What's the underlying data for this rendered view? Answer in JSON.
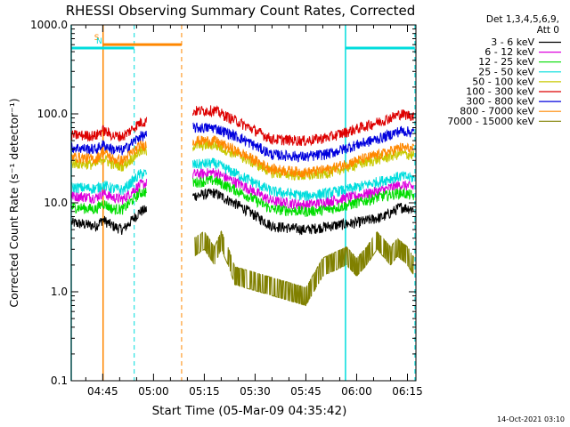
{
  "chart_data": {
    "type": "line",
    "title": "RHESSI Observing Summary Count Rates, Corrected",
    "xlabel": "Start Time (05-Mar-09 04:35:42)",
    "ylabel": "Corrected Count Rate (s⁻¹ detector⁻¹)",
    "yscale": "log",
    "ylim": [
      0.1,
      1000
    ],
    "xlim_minutes": [
      275.7,
      377.5
    ],
    "y_ticks": [
      {
        "value": 0.1,
        "label": "0.1"
      },
      {
        "value": 1,
        "label": "1.0"
      },
      {
        "value": 10,
        "label": "10.0"
      },
      {
        "value": 100,
        "label": "100.0"
      },
      {
        "value": 1000,
        "label": "1000.0"
      }
    ],
    "x_ticks": [
      {
        "minute": 285,
        "label": "04:45"
      },
      {
        "minute": 300,
        "label": "05:00"
      },
      {
        "minute": 315,
        "label": "05:15"
      },
      {
        "minute": 330,
        "label": "05:30"
      },
      {
        "minute": 345,
        "label": "05:45"
      },
      {
        "minute": 360,
        "label": "06:00"
      },
      {
        "minute": 375,
        "label": "06:15"
      }
    ],
    "legend_placement": "right",
    "legend_header": [
      "Det 1,3,4,5,6,9,",
      "Att 0"
    ],
    "series": [
      {
        "name": "3 - 6 keV",
        "color": "#000000",
        "base": 5.5,
        "x": [
          276,
          283,
          285,
          288,
          291,
          296,
          312,
          318,
          326,
          335,
          345,
          352,
          360,
          368,
          373,
          377
        ],
        "y": [
          6,
          5.5,
          6.5,
          5.5,
          5,
          8,
          12,
          13,
          9,
          5.5,
          5,
          5.5,
          6,
          7,
          9,
          8.5
        ]
      },
      {
        "name": "6 - 12 keV",
        "color": "#dd00dd",
        "x": [
          276,
          283,
          285,
          288,
          291,
          296,
          312,
          318,
          326,
          335,
          345,
          352,
          360,
          368,
          373,
          377
        ],
        "y": [
          12,
          11.5,
          13,
          11.5,
          11,
          16,
          21,
          22,
          16,
          10.5,
          9.5,
          10.5,
          12,
          14,
          16,
          15
        ]
      },
      {
        "name": "12 - 25 keV",
        "color": "#00dd00",
        "x": [
          276,
          283,
          285,
          288,
          291,
          296,
          312,
          318,
          326,
          335,
          345,
          352,
          360,
          368,
          373,
          377
        ],
        "y": [
          9,
          8.5,
          10,
          8.5,
          8.5,
          13,
          17,
          18,
          13,
          8.5,
          8,
          8.5,
          10,
          12,
          13,
          12
        ]
      },
      {
        "name": "25 - 50 keV",
        "color": "#00dddd",
        "x": [
          276,
          283,
          285,
          288,
          291,
          296,
          312,
          318,
          326,
          335,
          345,
          352,
          360,
          368,
          373,
          377
        ],
        "y": [
          15,
          14.5,
          16,
          14.5,
          14,
          21,
          27,
          28,
          20,
          13.5,
          12,
          13,
          15,
          18,
          20,
          19
        ]
      },
      {
        "name": "50 - 100 keV",
        "color": "#c8c800",
        "x": [
          276,
          283,
          285,
          288,
          291,
          296,
          312,
          318,
          326,
          335,
          345,
          352,
          360,
          368,
          373,
          377
        ],
        "y": [
          28,
          27,
          32,
          27,
          26,
          38,
          44,
          45,
          33,
          22,
          20,
          22,
          27,
          32,
          36,
          34
        ]
      },
      {
        "name": "100 - 300 keV",
        "color": "#dd0000",
        "x": [
          276,
          283,
          285,
          288,
          291,
          296,
          312,
          318,
          326,
          335,
          345,
          352,
          360,
          368,
          373,
          377
        ],
        "y": [
          58,
          57,
          66,
          57,
          56,
          80,
          108,
          110,
          78,
          52,
          50,
          55,
          68,
          85,
          100,
          95
        ]
      },
      {
        "name": "300 - 800 keV",
        "color": "#0000dd",
        "x": [
          276,
          283,
          285,
          288,
          291,
          296,
          312,
          318,
          326,
          335,
          345,
          352,
          360,
          368,
          373,
          377
        ],
        "y": [
          42,
          40,
          45,
          40,
          39,
          56,
          70,
          70,
          53,
          35,
          33,
          36,
          45,
          55,
          65,
          62
        ]
      },
      {
        "name": "800 - 7000 keV",
        "color": "#ff8800",
        "x": [
          276,
          283,
          285,
          288,
          291,
          296,
          312,
          318,
          326,
          335,
          345,
          352,
          360,
          368,
          373,
          377
        ],
        "y": [
          33,
          31,
          38,
          31,
          30,
          44,
          50,
          50,
          36,
          24,
          22,
          24,
          30,
          36,
          42,
          40
        ]
      },
      {
        "name": "7000 - 15000 keV",
        "color": "#808000",
        "x": [
          312,
          315,
          318,
          320,
          322,
          324,
          345,
          350,
          357,
          360,
          363,
          366,
          370,
          372,
          375,
          377
        ],
        "y": [
          2.5,
          3,
          2,
          3,
          2,
          1.2,
          0.7,
          1.5,
          2,
          1.5,
          2,
          3,
          2,
          2.5,
          2,
          1.5
        ]
      }
    ],
    "state_bars": [
      {
        "label": "S",
        "color": "#ff8800",
        "from": 285.1,
        "to": 308.3,
        "level": 600
      },
      {
        "label": "N",
        "color": "#00dddd",
        "from": 275.7,
        "to": 294.3,
        "level": 550
      },
      {
        "label": "",
        "color": "#00dddd",
        "from": 356.7,
        "to": 377.2,
        "level": 550
      }
    ],
    "markers": [
      {
        "minute": 285.1,
        "color": "#ff8800",
        "style": "solid"
      },
      {
        "minute": 308.3,
        "color": "#ff8800",
        "style": "dashed"
      },
      {
        "minute": 294.3,
        "color": "#00dddd",
        "style": "dashed"
      },
      {
        "minute": 356.7,
        "color": "#00dddd",
        "style": "solid"
      },
      {
        "minute": 377.2,
        "color": "#00dddd",
        "style": "dashed"
      },
      {
        "minute": 275.7,
        "color": "#00dddd",
        "style": "solid"
      }
    ],
    "gap": {
      "from": 298,
      "to": 311.5
    }
  },
  "footer": {
    "timestamp": "14-Oct-2021 03:10"
  }
}
